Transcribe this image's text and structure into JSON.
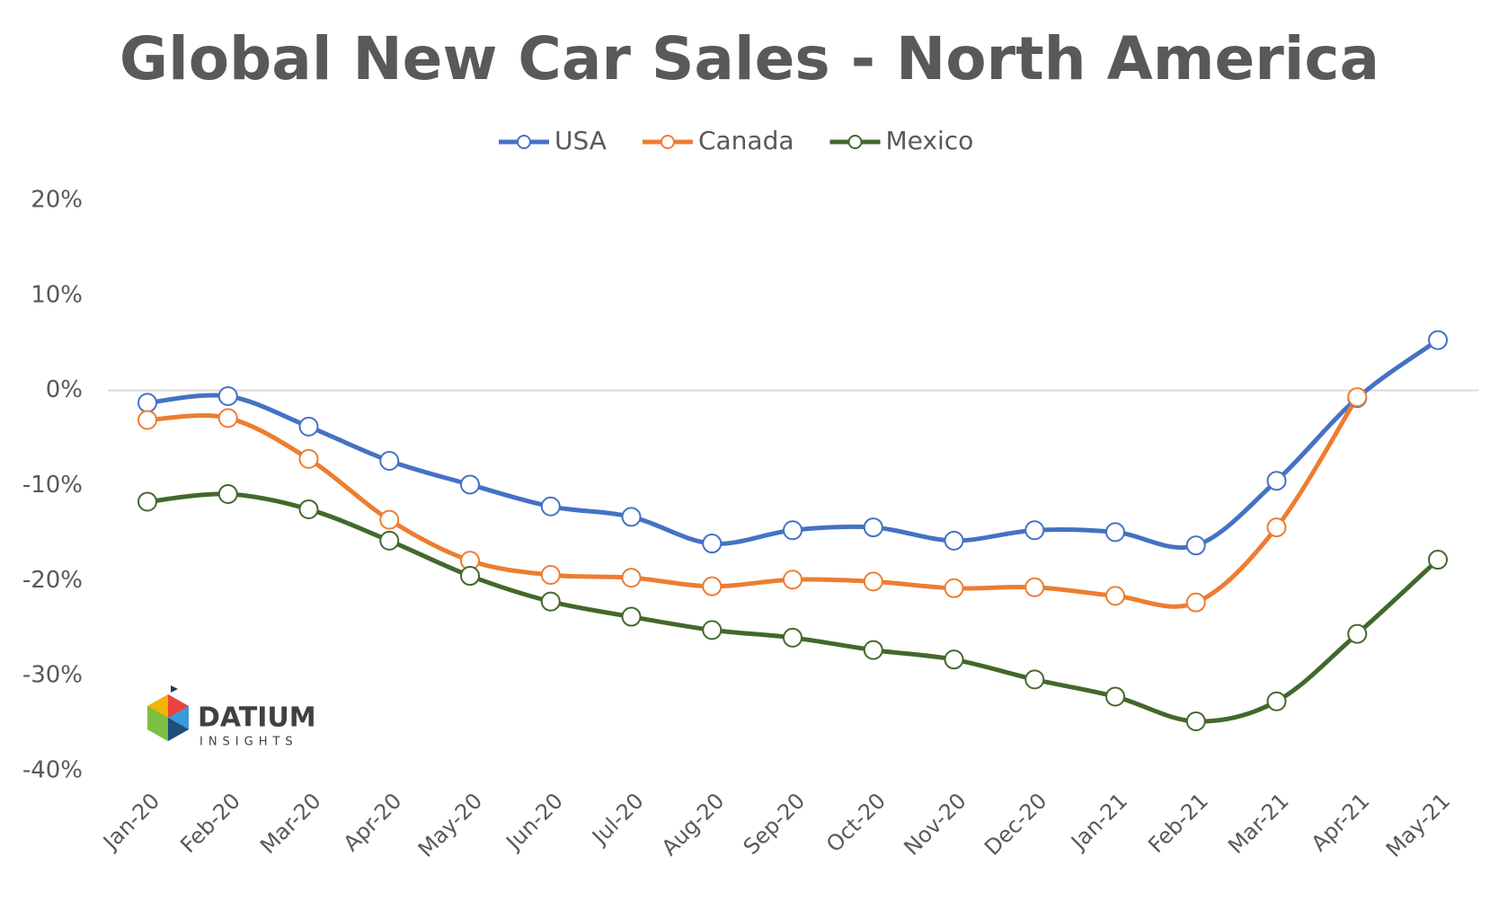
{
  "chart_data": {
    "type": "line",
    "title": "Global New Car Sales - North America",
    "categories": [
      "Jan-20",
      "Feb-20",
      "Mar-20",
      "Apr-20",
      "May-20",
      "Jun-20",
      "Jul-20",
      "Aug-20",
      "Sep-20",
      "Oct-20",
      "Nov-20",
      "Dec-20",
      "Jan-21",
      "Feb-21",
      "Mar-21",
      "Apr-21",
      "May-21"
    ],
    "series": [
      {
        "name": "USA",
        "color": "#4472c4",
        "values": [
          -1.3,
          -0.6,
          -3.8,
          -7.4,
          -9.9,
          -12.2,
          -13.3,
          -16.1,
          -14.7,
          -14.4,
          -15.8,
          -14.7,
          -14.9,
          -16.3,
          -9.5,
          -0.8,
          5.3
        ]
      },
      {
        "name": "Canada",
        "color": "#ed7d31",
        "values": [
          -3.1,
          -2.9,
          -7.2,
          -13.6,
          -17.9,
          -19.4,
          -19.7,
          -20.6,
          -19.9,
          -20.1,
          -20.8,
          -20.7,
          -21.6,
          -22.3,
          -14.4,
          -0.7,
          null
        ]
      },
      {
        "name": "Mexico",
        "color": "#43682b",
        "values": [
          -11.7,
          -10.9,
          -12.5,
          -15.8,
          -19.5,
          -22.2,
          -23.8,
          -25.2,
          -26.0,
          -27.3,
          -28.3,
          -30.4,
          -32.2,
          -34.8,
          -32.7,
          -25.6,
          -17.8
        ]
      }
    ],
    "ylim": [
      -40,
      20
    ],
    "yticks": [
      {
        "value": 20,
        "label": "20%"
      },
      {
        "value": 10,
        "label": "10%"
      },
      {
        "value": 0,
        "label": "0%"
      },
      {
        "value": -10,
        "label": "-10%"
      },
      {
        "value": -20,
        "label": "-20%"
      },
      {
        "value": -30,
        "label": "-30%"
      },
      {
        "value": -40,
        "label": "-40%"
      }
    ],
    "zero_line": true,
    "legend": "top",
    "logo": {
      "name": "DATIUM",
      "tagline": "INSIGHTS"
    }
  }
}
